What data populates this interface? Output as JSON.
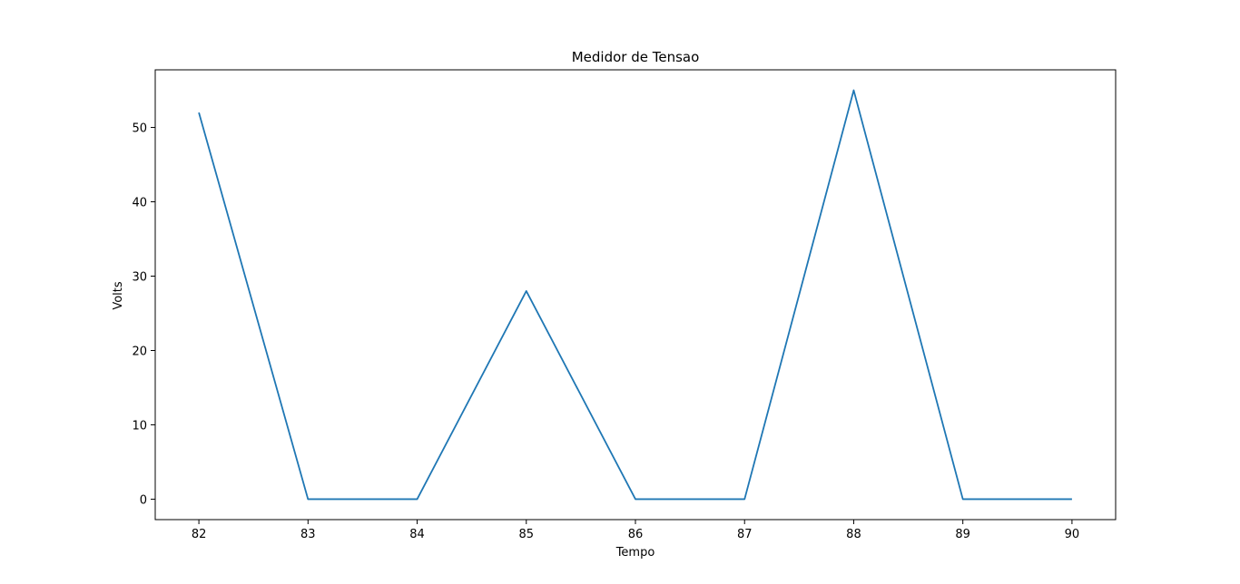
{
  "chart_data": {
    "type": "line",
    "title": "Medidor de Tensao",
    "xlabel": "Tempo",
    "ylabel": "Volts",
    "x": [
      82,
      83,
      84,
      85,
      86,
      87,
      88,
      89,
      90
    ],
    "series": [
      {
        "values": [
          52,
          0,
          0,
          28,
          0,
          0,
          55,
          0,
          0
        ],
        "color": "#1f77b4"
      }
    ],
    "xticks": [
      82,
      83,
      84,
      85,
      86,
      87,
      88,
      89,
      90
    ],
    "yticks": [
      0,
      10,
      20,
      30,
      40,
      50
    ],
    "xlim": [
      81.6,
      90.4
    ],
    "ylim": [
      -2.75,
      57.75
    ],
    "grid": false,
    "legend": "none"
  }
}
